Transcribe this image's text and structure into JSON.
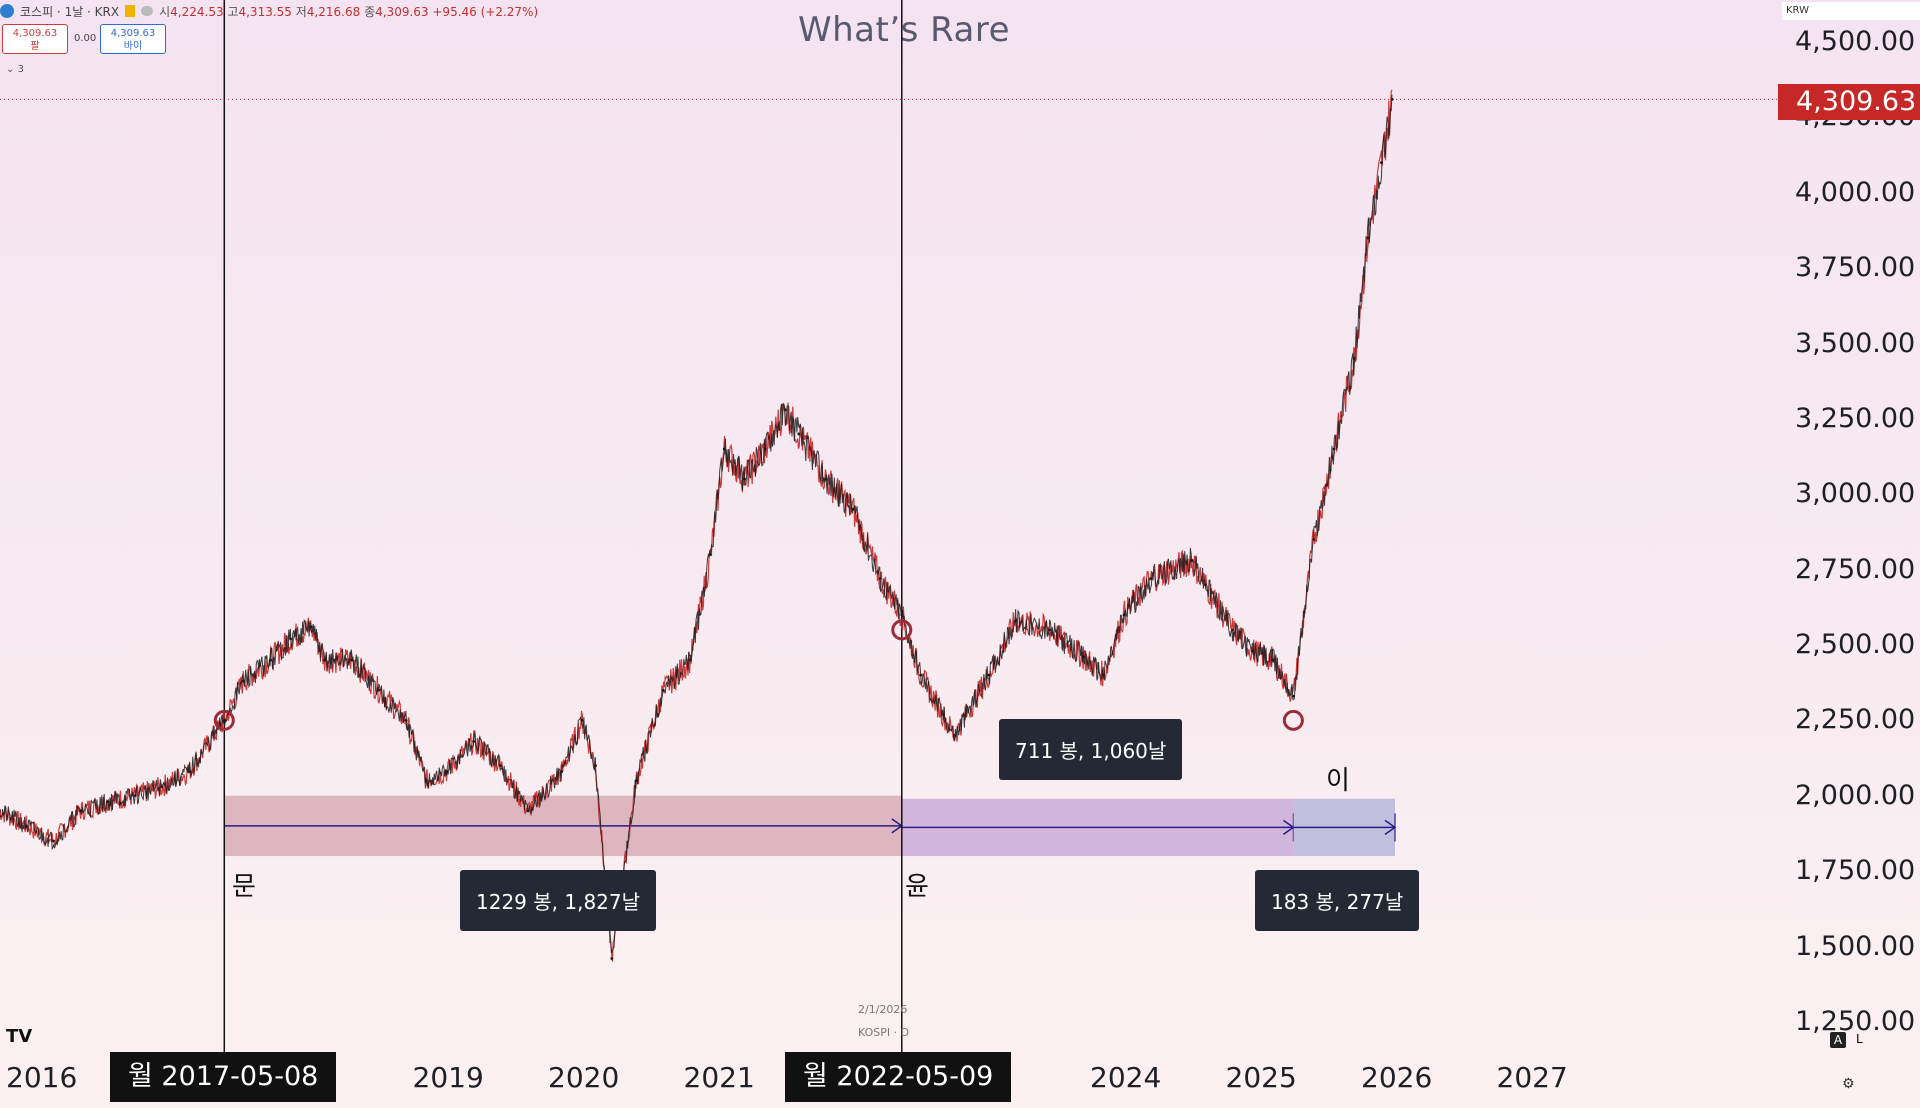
{
  "header": {
    "symbol": "코스피 · 1날 · KRX",
    "ohlc": [
      {
        "k": "시",
        "v": "4,224.53"
      },
      {
        "k": "고",
        "v": "4,313.55"
      },
      {
        "k": "저",
        "v": "4,216.68"
      },
      {
        "k": "종",
        "v": "4,309.63"
      }
    ],
    "change": "+95.46 (+2.27%)",
    "sell_price": "4,309.63",
    "sell_label": "팔",
    "spread": "0.00",
    "buy_price": "4,309.63",
    "buy_label": "바이",
    "indicator_count": "3"
  },
  "title": "What’s Rare",
  "currency": "KRW",
  "current_price": "4,309.63",
  "watermark": {
    "date": "2/1/2026",
    "symbol": "KOSPI · D"
  },
  "annotations": {
    "label_moon": "문",
    "label_yoon": "윤",
    "label_lee": "이",
    "range1": "1229 봉, 1,827날",
    "range2": "711 봉, 1,060날",
    "range3": "183 봉, 277날",
    "date_box_1": "월 2017-05-08",
    "date_box_2": "월 2022-05-09"
  },
  "colors": {
    "range1_fill": "#d7a7b4",
    "range2_fill": "#c8a6d6",
    "range3_fill": "#b4b2da",
    "range_line": "#2a1c86",
    "marker": "#9c2b3a",
    "price_badge": "#c62828",
    "up": "#1b1b1b",
    "down": "#c62828"
  },
  "chart_data": {
    "type": "line",
    "series_style": "candlestick",
    "xlabel": "",
    "ylabel": "",
    "ylim": [
      1250,
      4500
    ],
    "yticks": [
      "4,500.00",
      "4,250.00",
      "4,000.00",
      "3,750.00",
      "3,500.00",
      "3,250.00",
      "3,000.00",
      "2,750.00",
      "2,500.00",
      "2,250.00",
      "2,000.00",
      "1,750.00",
      "1,500.00",
      "1,250.00"
    ],
    "ytick_values": [
      4500,
      4250,
      4000,
      3750,
      3500,
      3250,
      3000,
      2750,
      2500,
      2250,
      2000,
      1750,
      1500,
      1250
    ],
    "xticks": [
      {
        "label": "2016",
        "year": 2016.0
      },
      {
        "label": "2019",
        "year": 2019.0
      },
      {
        "label": "2020",
        "year": 2020.0
      },
      {
        "label": "2021",
        "year": 2021.0
      },
      {
        "label": "2024",
        "year": 2024.0
      },
      {
        "label": "2025",
        "year": 2025.0
      },
      {
        "label": "2026",
        "year": 2026.0
      },
      {
        "label": "2027",
        "year": 2027.0
      }
    ],
    "x": [
      2015.7,
      2015.9,
      2016.1,
      2016.3,
      2016.5,
      2016.7,
      2016.9,
      2017.1,
      2017.36,
      2017.5,
      2017.7,
      2017.85,
      2018.0,
      2018.1,
      2018.3,
      2018.5,
      2018.7,
      2018.85,
      2019.0,
      2019.2,
      2019.4,
      2019.6,
      2019.85,
      2020.0,
      2020.1,
      2020.22,
      2020.4,
      2020.6,
      2020.8,
      2020.95,
      2021.05,
      2021.2,
      2021.35,
      2021.5,
      2021.6,
      2021.8,
      2022.0,
      2022.2,
      2022.36,
      2022.5,
      2022.75,
      2023.0,
      2023.2,
      2023.45,
      2023.7,
      2023.85,
      2024.0,
      2024.2,
      2024.5,
      2024.6,
      2024.8,
      2024.95,
      2025.1,
      2025.25,
      2025.4,
      2025.55,
      2025.7,
      2025.8,
      2025.9,
      2025.98
    ],
    "values": [
      1950,
      1900,
      1850,
      1950,
      1980,
      2000,
      2030,
      2080,
      2250,
      2380,
      2450,
      2520,
      2560,
      2450,
      2450,
      2350,
      2250,
      2050,
      2080,
      2180,
      2100,
      1950,
      2080,
      2250,
      2100,
      1460,
      2050,
      2350,
      2450,
      2800,
      3150,
      3050,
      3150,
      3280,
      3200,
      3050,
      2950,
      2720,
      2600,
      2400,
      2200,
      2400,
      2580,
      2550,
      2460,
      2400,
      2600,
      2720,
      2780,
      2700,
      2550,
      2480,
      2450,
      2330,
      2850,
      3150,
      3450,
      3850,
      4100,
      4309.63
    ],
    "markers": [
      {
        "x": 2017.36,
        "y": 2250
      },
      {
        "x": 2022.36,
        "y": 2550
      },
      {
        "x": 2025.25,
        "y": 2250
      }
    ],
    "ranges": [
      {
        "from": 2017.36,
        "to": 2022.36,
        "y_low": 1800,
        "y_high": 2000,
        "label": "1229 봉, 1,827날"
      },
      {
        "from": 2022.36,
        "to": 2025.25,
        "y_low": 1800,
        "y_high": 1990,
        "label": "711 봉, 1,060날"
      },
      {
        "from": 2025.25,
        "to": 2026.0,
        "y_low": 1800,
        "y_high": 1990,
        "label": "183 봉, 277날"
      }
    ],
    "vlines": [
      2017.36,
      2022.36
    ],
    "current": 4309.63
  }
}
